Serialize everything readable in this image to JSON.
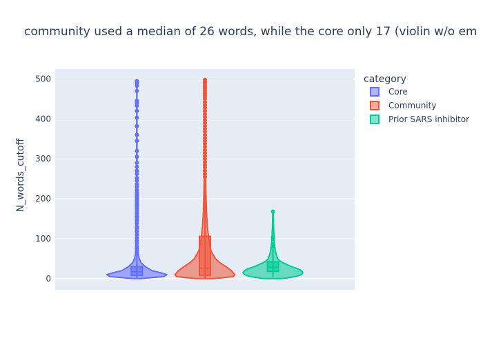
{
  "chart_data": {
    "type": "violin",
    "title": "community used a median of 26 words, while the core only 17 (violin w/o em",
    "ylabel": "N_words_cutoff",
    "ylim": [
      -28,
      525
    ],
    "yticks": [
      "0",
      "100",
      "200",
      "300",
      "400",
      "500"
    ],
    "ytick_values": [
      0,
      100,
      200,
      300,
      400,
      500
    ],
    "grid": true,
    "legend": {
      "title": "category",
      "position": "top-right"
    },
    "series": [
      {
        "name": "Core",
        "color": "#636efa",
        "median": 17,
        "q1": 8,
        "q3": 30,
        "whisker_low": 1,
        "whisker_high": 63,
        "max": 495,
        "violin": [
          [
            0,
            0.12
          ],
          [
            5,
            0.9
          ],
          [
            10,
            1.0
          ],
          [
            15,
            0.78
          ],
          [
            20,
            0.5
          ],
          [
            30,
            0.28
          ],
          [
            40,
            0.14
          ],
          [
            50,
            0.08
          ],
          [
            60,
            0.05
          ],
          [
            80,
            0.03
          ],
          [
            100,
            0.02
          ],
          [
            150,
            0.012
          ],
          [
            200,
            0.008
          ],
          [
            300,
            0.005
          ],
          [
            400,
            0.004
          ],
          [
            495,
            0.003
          ]
        ],
        "outliers": [
          65,
          70,
          75,
          80,
          88,
          95,
          102,
          110,
          118,
          125,
          130,
          138,
          145,
          150,
          155,
          160,
          165,
          170,
          175,
          180,
          185,
          190,
          195,
          200,
          205,
          210,
          215,
          222,
          230,
          236,
          245,
          252,
          262,
          270,
          280,
          290,
          305,
          320,
          345,
          360,
          382,
          403,
          420,
          433,
          440,
          445,
          470,
          483,
          490,
          495
        ]
      },
      {
        "name": "Community",
        "color": "#ef553b",
        "median": 26,
        "q1": 8,
        "q3": 106,
        "whisker_low": 1,
        "whisker_high": 248,
        "max": 498,
        "violin": [
          [
            0,
            0.3
          ],
          [
            5,
            0.95
          ],
          [
            10,
            1.0
          ],
          [
            20,
            0.88
          ],
          [
            30,
            0.7
          ],
          [
            40,
            0.5
          ],
          [
            50,
            0.35
          ],
          [
            70,
            0.2
          ],
          [
            100,
            0.13
          ],
          [
            130,
            0.08
          ],
          [
            170,
            0.05
          ],
          [
            210,
            0.035
          ],
          [
            250,
            0.025
          ],
          [
            300,
            0.02
          ],
          [
            350,
            0.015
          ],
          [
            400,
            0.012
          ],
          [
            450,
            0.01
          ],
          [
            498,
            0.008
          ]
        ],
        "outliers": [
          255,
          262,
          270,
          278,
          285,
          292,
          300,
          307,
          315,
          322,
          330,
          338,
          345,
          352,
          360,
          368,
          375,
          382,
          390,
          397,
          405,
          412,
          420,
          428,
          435,
          442,
          450,
          455,
          460,
          465,
          470,
          475,
          480,
          485,
          490,
          494,
          498
        ]
      },
      {
        "name": "Prior SARS inhibitor",
        "color": "#00cc96",
        "median": 28,
        "q1": 18,
        "q3": 42,
        "whisker_low": 4,
        "whisker_high": 78,
        "max": 168,
        "violin": [
          [
            0,
            0.3
          ],
          [
            5,
            0.75
          ],
          [
            10,
            0.95
          ],
          [
            15,
            1.0
          ],
          [
            20,
            0.95
          ],
          [
            25,
            0.82
          ],
          [
            30,
            0.62
          ],
          [
            35,
            0.47
          ],
          [
            40,
            0.33
          ],
          [
            45,
            0.22
          ],
          [
            50,
            0.16
          ],
          [
            60,
            0.11
          ],
          [
            70,
            0.08
          ],
          [
            80,
            0.06
          ],
          [
            90,
            0.045
          ],
          [
            100,
            0.035
          ],
          [
            120,
            0.025
          ],
          [
            140,
            0.015
          ],
          [
            160,
            0.01
          ],
          [
            168,
            0.005
          ]
        ],
        "outliers": [
          82,
          86,
          100,
          104,
          168
        ]
      }
    ]
  }
}
